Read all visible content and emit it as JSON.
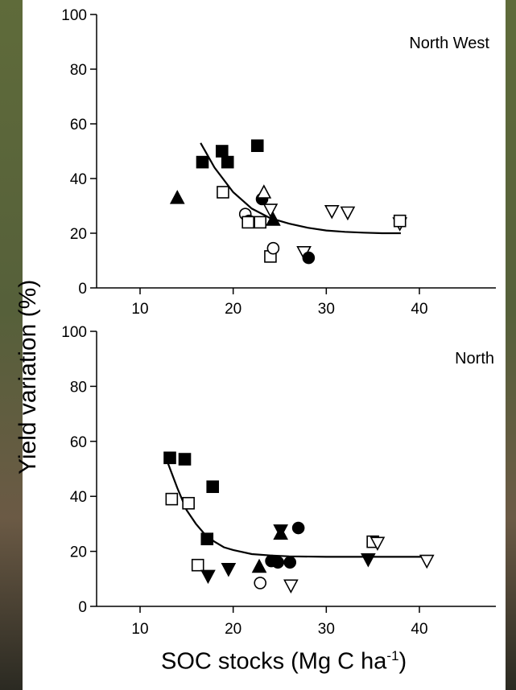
{
  "colors": {
    "photo_green": "#5f6b3a",
    "photo_soil": "#6b5a45",
    "panel": "#ffffff",
    "ink": "#000000"
  },
  "axis_labels": {
    "y": "Yield variation (%)",
    "x_main": "SOC stocks (Mg C ha",
    "x_sup": "-1",
    "x_tail": ")"
  },
  "chart_data": [
    {
      "type": "scatter",
      "title": "North West",
      "xlabel": "",
      "ylabel": "",
      "xlim": [
        5,
        45
      ],
      "ylim": [
        0,
        100
      ],
      "xticks": [
        10,
        20,
        30,
        40
      ],
      "yticks": [
        0,
        20,
        40,
        60,
        80,
        100
      ],
      "grid": false,
      "fit_curve": {
        "x": [
          16.5,
          18,
          20,
          22,
          24,
          26,
          28,
          30,
          32,
          34,
          36,
          38
        ],
        "y": [
          53,
          44,
          35,
          29,
          25.5,
          23.5,
          22,
          21,
          20.5,
          20.2,
          20,
          20
        ]
      },
      "points": [
        {
          "x": 14,
          "y": 33,
          "marker": "triangle-up-filled"
        },
        {
          "x": 16.7,
          "y": 46,
          "marker": "square-filled"
        },
        {
          "x": 18.8,
          "y": 50,
          "marker": "square-filled"
        },
        {
          "x": 19.4,
          "y": 46,
          "marker": "square-filled"
        },
        {
          "x": 22.6,
          "y": 52,
          "marker": "square-filled"
        },
        {
          "x": 18.9,
          "y": 35,
          "marker": "square-open"
        },
        {
          "x": 21.3,
          "y": 27,
          "marker": "circle-open"
        },
        {
          "x": 21.7,
          "y": 24.5,
          "marker": "circle-open"
        },
        {
          "x": 21.6,
          "y": 24,
          "marker": "square-open"
        },
        {
          "x": 22.9,
          "y": 24,
          "marker": "square-open"
        },
        {
          "x": 23.1,
          "y": 32.5,
          "marker": "circle-filled"
        },
        {
          "x": 23.3,
          "y": 35,
          "marker": "triangle-up-open"
        },
        {
          "x": 24.0,
          "y": 28.5,
          "marker": "triangle-down-open"
        },
        {
          "x": 24.3,
          "y": 25,
          "marker": "triangle-up-filled"
        },
        {
          "x": 24.0,
          "y": 11.5,
          "marker": "square-open"
        },
        {
          "x": 24.3,
          "y": 14.5,
          "marker": "circle-open"
        },
        {
          "x": 27.6,
          "y": 13,
          "marker": "triangle-down-open"
        },
        {
          "x": 28.1,
          "y": 11,
          "marker": "circle-filled"
        },
        {
          "x": 30.6,
          "y": 28,
          "marker": "triangle-down-open"
        },
        {
          "x": 32.3,
          "y": 27.5,
          "marker": "triangle-down-open"
        },
        {
          "x": 37.9,
          "y": 23.5,
          "marker": "triangle-down-open"
        },
        {
          "x": 37.9,
          "y": 24.5,
          "marker": "square-open"
        }
      ]
    },
    {
      "type": "scatter",
      "title": "North",
      "xlabel": "",
      "ylabel": "",
      "xlim": [
        5,
        45
      ],
      "ylim": [
        0,
        100
      ],
      "xticks": [
        10,
        20,
        30,
        40
      ],
      "yticks": [
        0,
        20,
        40,
        60,
        80,
        100
      ],
      "grid": false,
      "fit_curve": {
        "x": [
          13,
          14,
          15,
          16,
          17,
          18,
          19,
          20,
          22,
          24,
          26,
          30,
          35,
          41
        ],
        "y": [
          52,
          43,
          35,
          30,
          26,
          23.5,
          21.5,
          20.5,
          19,
          18.5,
          18.2,
          18,
          18,
          18
        ]
      },
      "points": [
        {
          "x": 13.2,
          "y": 54,
          "marker": "square-filled"
        },
        {
          "x": 14.8,
          "y": 53.5,
          "marker": "square-filled"
        },
        {
          "x": 17.8,
          "y": 43.5,
          "marker": "square-filled"
        },
        {
          "x": 17.2,
          "y": 24.5,
          "marker": "square-filled"
        },
        {
          "x": 13.4,
          "y": 39,
          "marker": "square-open"
        },
        {
          "x": 15.2,
          "y": 37.5,
          "marker": "square-open"
        },
        {
          "x": 16.2,
          "y": 15,
          "marker": "square-open"
        },
        {
          "x": 17.3,
          "y": 11,
          "marker": "triangle-down-filled"
        },
        {
          "x": 19.5,
          "y": 13.5,
          "marker": "triangle-down-filled"
        },
        {
          "x": 22.8,
          "y": 14.5,
          "marker": "triangle-up-filled"
        },
        {
          "x": 22.9,
          "y": 8.5,
          "marker": "circle-open"
        },
        {
          "x": 24.1,
          "y": 16.5,
          "marker": "circle-filled"
        },
        {
          "x": 24.8,
          "y": 16,
          "marker": "circle-filled"
        },
        {
          "x": 26.1,
          "y": 16,
          "marker": "circle-filled"
        },
        {
          "x": 25.1,
          "y": 27.5,
          "marker": "triangle-down-filled"
        },
        {
          "x": 25.1,
          "y": 26.5,
          "marker": "triangle-up-filled"
        },
        {
          "x": 27.0,
          "y": 28.5,
          "marker": "circle-filled"
        },
        {
          "x": 26.2,
          "y": 7.5,
          "marker": "triangle-down-open"
        },
        {
          "x": 34.5,
          "y": 17,
          "marker": "triangle-down-filled"
        },
        {
          "x": 35.0,
          "y": 23.5,
          "marker": "square-open"
        },
        {
          "x": 35.5,
          "y": 23,
          "marker": "triangle-down-open"
        },
        {
          "x": 40.8,
          "y": 16.5,
          "marker": "triangle-down-open"
        }
      ]
    }
  ]
}
